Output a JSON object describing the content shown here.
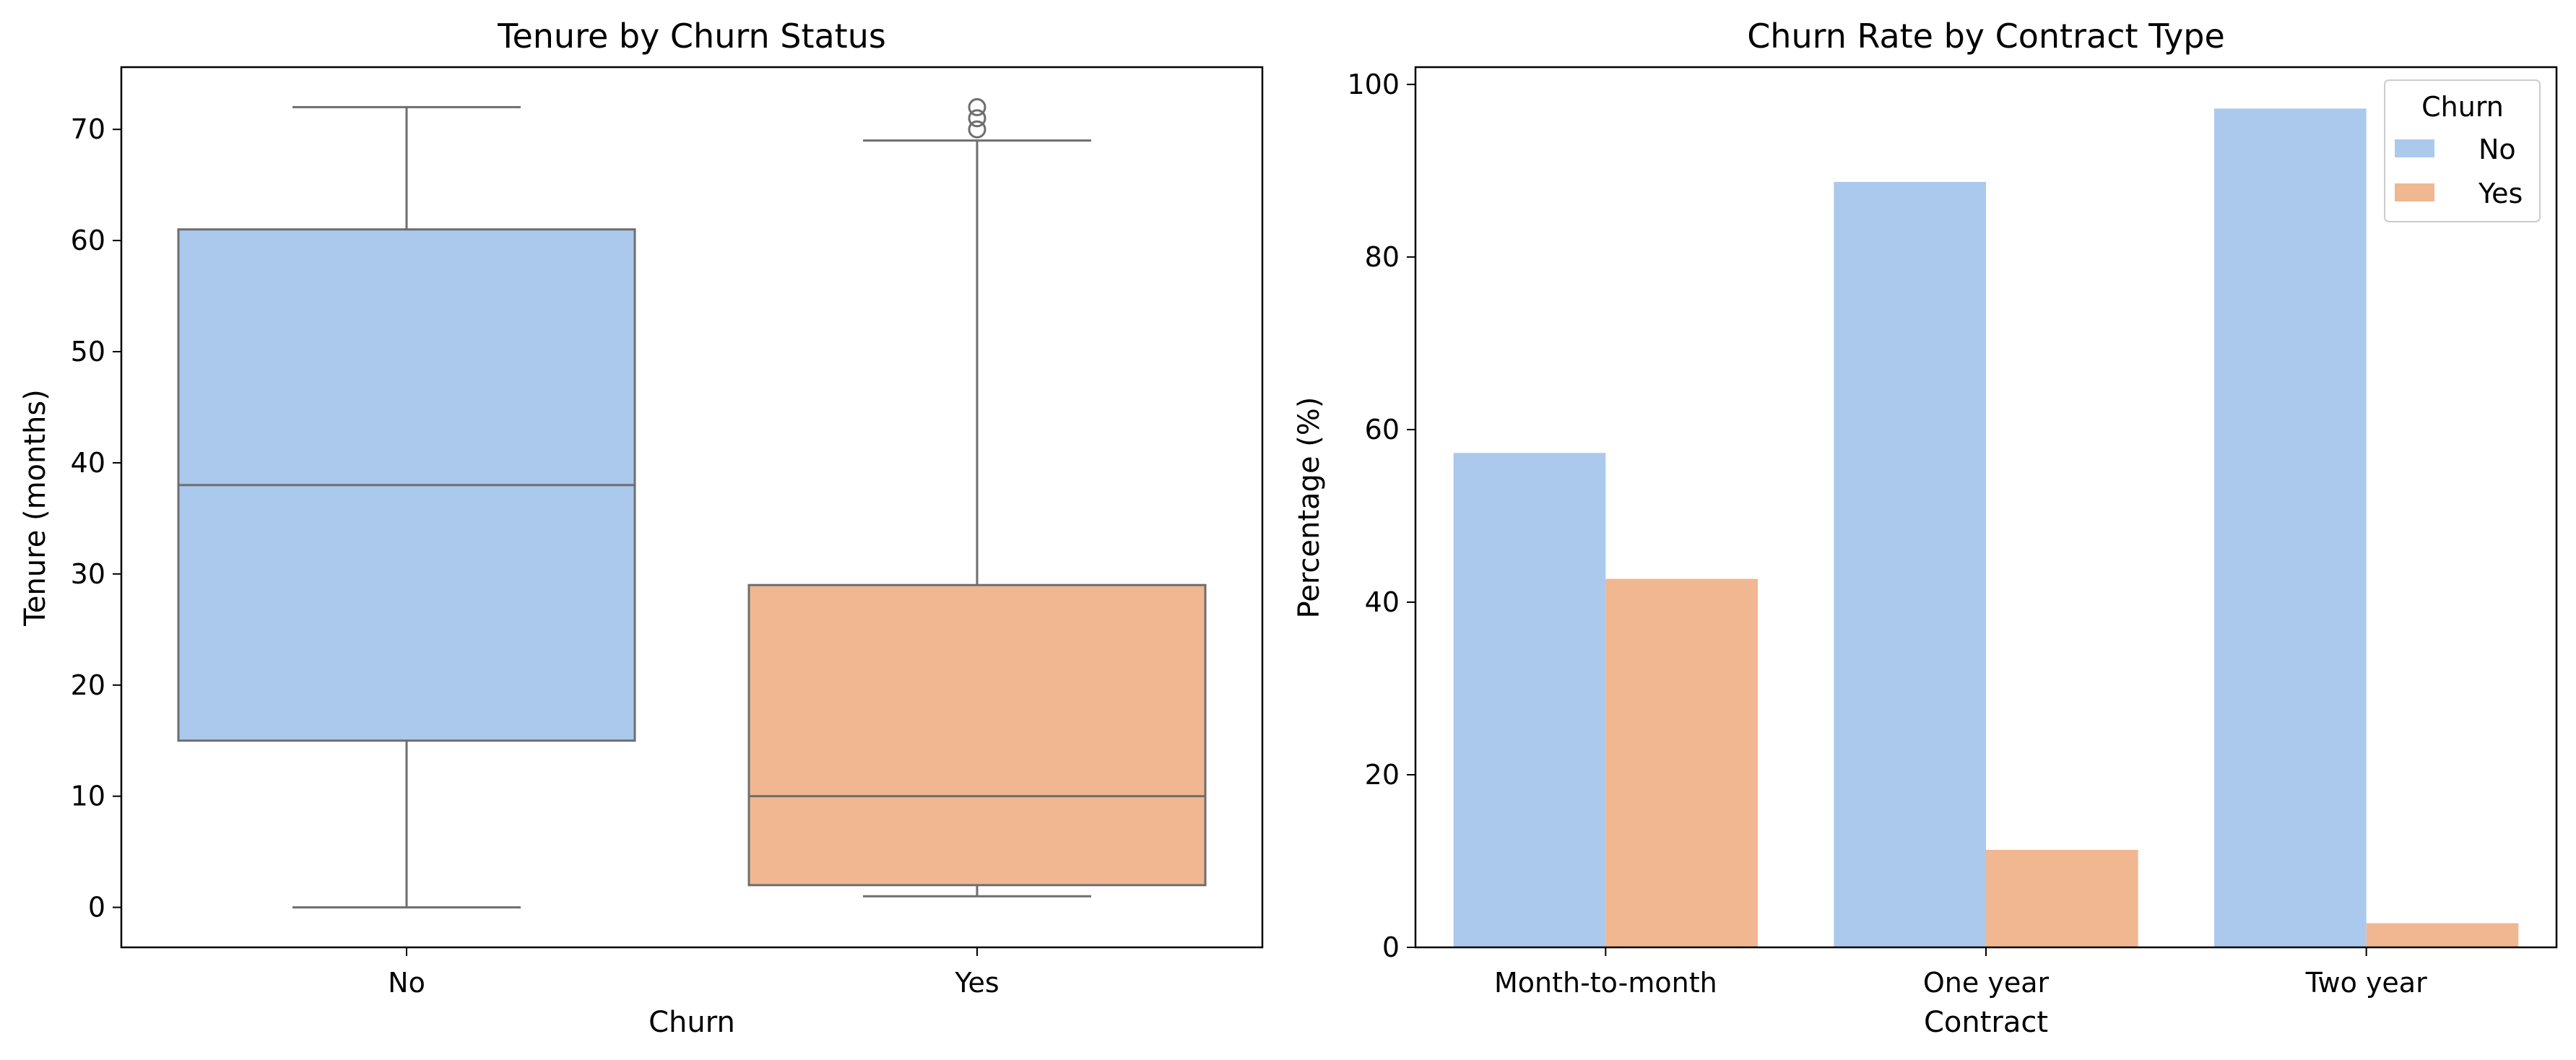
{
  "colors": {
    "no": "#abc9ed",
    "yes": "#f0b791",
    "box_line": "#6e6e6e",
    "axis": "#000000"
  },
  "chart_data": [
    {
      "type": "box",
      "title": "Tenure by Churn Status",
      "xlabel": "Churn",
      "ylabel": "Tenure (months)",
      "categories": [
        "No",
        "Yes"
      ],
      "ylim": [
        -3.6,
        75.6
      ],
      "yticks": [
        0,
        10,
        20,
        30,
        40,
        50,
        60,
        70
      ],
      "boxes": [
        {
          "category": "No",
          "whisker_low": 0,
          "q1": 15,
          "median": 38,
          "q3": 61,
          "whisker_high": 72,
          "outliers": []
        },
        {
          "category": "Yes",
          "whisker_low": 1,
          "q1": 2,
          "median": 10,
          "q3": 29,
          "whisker_high": 69,
          "outliers": [
            70,
            71,
            72
          ]
        }
      ]
    },
    {
      "type": "bar",
      "title": "Churn Rate by Contract Type",
      "xlabel": "Contract",
      "ylabel": "Percentage (%)",
      "categories": [
        "Month-to-month",
        "One year",
        "Two year"
      ],
      "ylim": [
        0,
        102
      ],
      "yticks": [
        0,
        20,
        40,
        60,
        80,
        100
      ],
      "legend": {
        "title": "Churn",
        "position": "top-right"
      },
      "series": [
        {
          "name": "No",
          "values": [
            57.3,
            88.7,
            97.2
          ]
        },
        {
          "name": "Yes",
          "values": [
            42.7,
            11.3,
            2.8
          ]
        }
      ]
    }
  ]
}
